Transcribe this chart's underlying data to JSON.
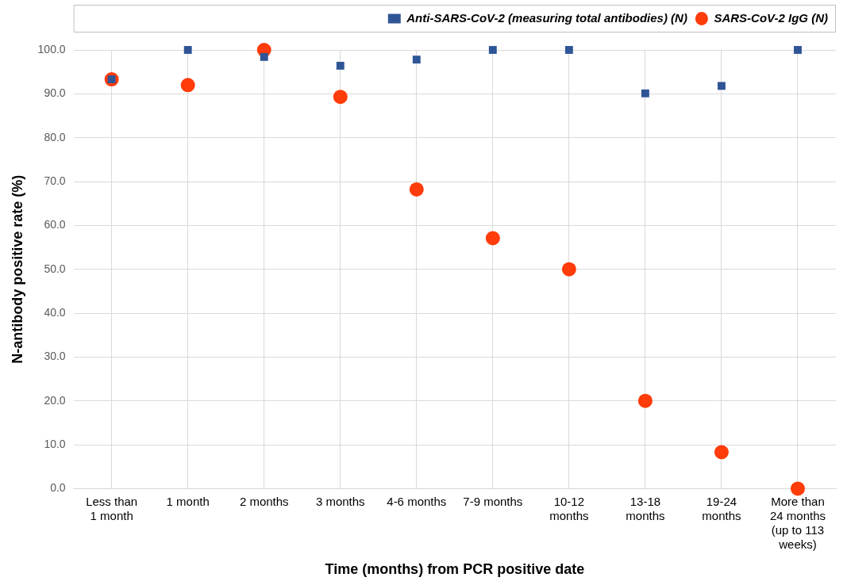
{
  "chart_data": {
    "type": "scatter",
    "xlabel": "Time (months) from PCR positive date",
    "ylabel": "N-antibody positive rate (%)",
    "categories": [
      "Less than 1 month",
      "1 month",
      "2 months",
      "3 months",
      "4-6 months",
      "7-9 months",
      "10-12 months",
      "13-18 months",
      "19-24 months",
      "More than 24 months (up to 113 weeks)"
    ],
    "series": [
      {
        "name": "Anti-SARS-CoV-2 (measuring total antibodies) (N)",
        "color": "#2f5597",
        "marker": "square",
        "values": [
          93.3,
          100,
          98.4,
          96.4,
          97.8,
          100,
          100,
          90.1,
          91.8,
          100
        ]
      },
      {
        "name": "SARS-CoV-2 IgG (N)",
        "color": "#ff3c0a",
        "marker": "circle",
        "values": [
          93.3,
          92.0,
          100,
          89.3,
          68.2,
          57.1,
          50.0,
          20.0,
          8.3,
          0
        ]
      }
    ],
    "ylim": [
      0,
      100
    ],
    "yticks": [
      {
        "value": 0,
        "label": "0.0"
      },
      {
        "value": 10,
        "label": "10.0"
      },
      {
        "value": 20,
        "label": "20.0"
      },
      {
        "value": 30,
        "label": "30.0"
      },
      {
        "value": 40,
        "label": "40.0"
      },
      {
        "value": 50,
        "label": "50.0"
      },
      {
        "value": 60,
        "label": "60.0"
      },
      {
        "value": 70,
        "label": "70.0"
      },
      {
        "value": 80,
        "label": "80.0"
      },
      {
        "value": 90,
        "label": "90.0"
      },
      {
        "value": 100,
        "label": "100.0"
      }
    ],
    "grid": true,
    "legend": "top right"
  }
}
